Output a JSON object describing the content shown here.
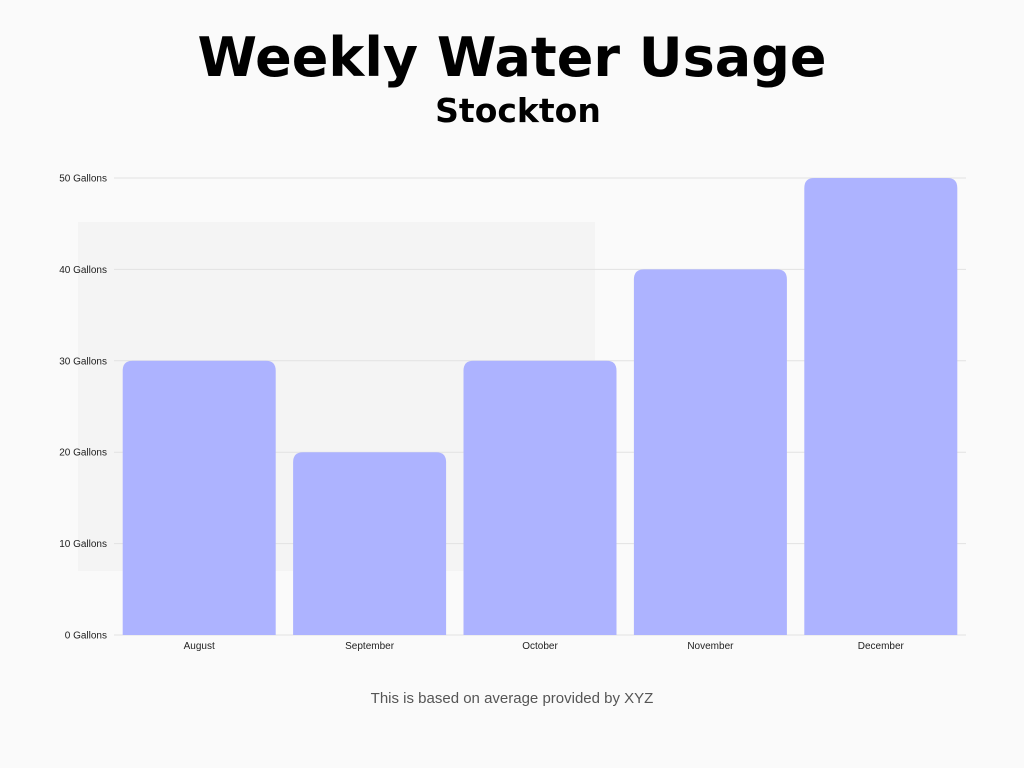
{
  "header": {
    "title": "Weekly Water Usage",
    "subtitle": "Stockton"
  },
  "footer": {
    "note": "This is based on average provided by XYZ"
  },
  "colors": {
    "bar": "#adb3ff",
    "gridline": "#e2e2e2",
    "background": "#fafafa",
    "panel": "#f2f2f2"
  },
  "chart_data": {
    "type": "bar",
    "title": "Weekly Water Usage",
    "subtitle": "Stockton",
    "categories": [
      "August",
      "September",
      "October",
      "November",
      "December"
    ],
    "values": [
      30,
      20,
      30,
      40,
      50
    ],
    "ylim": [
      0,
      50
    ],
    "yticks": [
      0,
      10,
      20,
      30,
      40,
      50
    ],
    "ytick_labels": [
      "0 Gallons",
      "10 Gallons",
      "20 Gallons",
      "30 Gallons",
      "40 Gallons",
      "50 Gallons"
    ],
    "grid": true,
    "legend": "none"
  }
}
